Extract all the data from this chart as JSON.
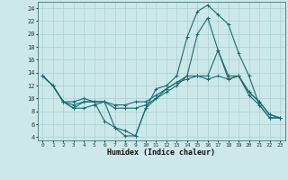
{
  "xlabel": "Humidex (Indice chaleur)",
  "bg_color": "#cce8ea",
  "grid_color": "#aacfd2",
  "line_color": "#1a6b6e",
  "xlim": [
    -0.5,
    23.5
  ],
  "ylim": [
    3.5,
    25.0
  ],
  "xticks": [
    0,
    1,
    2,
    3,
    4,
    5,
    6,
    7,
    8,
    9,
    10,
    11,
    12,
    13,
    14,
    15,
    16,
    17,
    18,
    19,
    20,
    21,
    22,
    23
  ],
  "yticks": [
    4,
    6,
    8,
    10,
    12,
    14,
    16,
    18,
    20,
    22,
    24
  ],
  "curves": [
    {
      "x": [
        0,
        1,
        2,
        3,
        4,
        5,
        6,
        7,
        8,
        9,
        10,
        11,
        12,
        13,
        14,
        15,
        16,
        17,
        18,
        19,
        20,
        21,
        22,
        23
      ],
      "y": [
        13.5,
        12.0,
        9.5,
        8.5,
        9.5,
        9.5,
        6.5,
        5.5,
        4.2,
        4.2,
        8.5,
        11.5,
        12.0,
        13.5,
        19.5,
        23.5,
        24.5,
        23.0,
        21.5,
        17.0,
        13.5,
        9.0,
        7.0,
        7.0
      ]
    },
    {
      "x": [
        0,
        1,
        2,
        3,
        4,
        5,
        6,
        7,
        8,
        9,
        10,
        11,
        12,
        13,
        14,
        15,
        16,
        17,
        18,
        19,
        20,
        21,
        22,
        23
      ],
      "y": [
        13.5,
        12.0,
        9.5,
        9.5,
        10.0,
        9.5,
        9.5,
        5.5,
        5.0,
        4.2,
        8.5,
        10.0,
        11.0,
        12.0,
        13.5,
        20.0,
        22.5,
        17.5,
        13.0,
        13.5,
        10.5,
        9.0,
        7.0,
        7.0
      ]
    },
    {
      "x": [
        0,
        1,
        2,
        3,
        4,
        5,
        6,
        7,
        8,
        9,
        10,
        11,
        12,
        13,
        14,
        15,
        16,
        17,
        18,
        19,
        20,
        21,
        22,
        23
      ],
      "y": [
        13.5,
        12.0,
        9.5,
        8.5,
        8.5,
        9.0,
        9.5,
        8.5,
        8.5,
        8.5,
        9.0,
        10.0,
        11.5,
        12.5,
        13.5,
        13.5,
        13.5,
        17.5,
        13.5,
        13.5,
        11.0,
        9.5,
        7.5,
        7.0
      ]
    },
    {
      "x": [
        0,
        1,
        2,
        3,
        4,
        5,
        6,
        7,
        8,
        9,
        10,
        11,
        12,
        13,
        14,
        15,
        16,
        17,
        18,
        19,
        20,
        21,
        22,
        23
      ],
      "y": [
        13.5,
        12.0,
        9.5,
        9.0,
        9.5,
        9.5,
        9.5,
        9.0,
        9.0,
        9.5,
        9.5,
        10.5,
        11.5,
        12.5,
        13.0,
        13.5,
        13.0,
        13.5,
        13.0,
        13.5,
        11.0,
        9.5,
        7.5,
        7.0
      ]
    }
  ]
}
